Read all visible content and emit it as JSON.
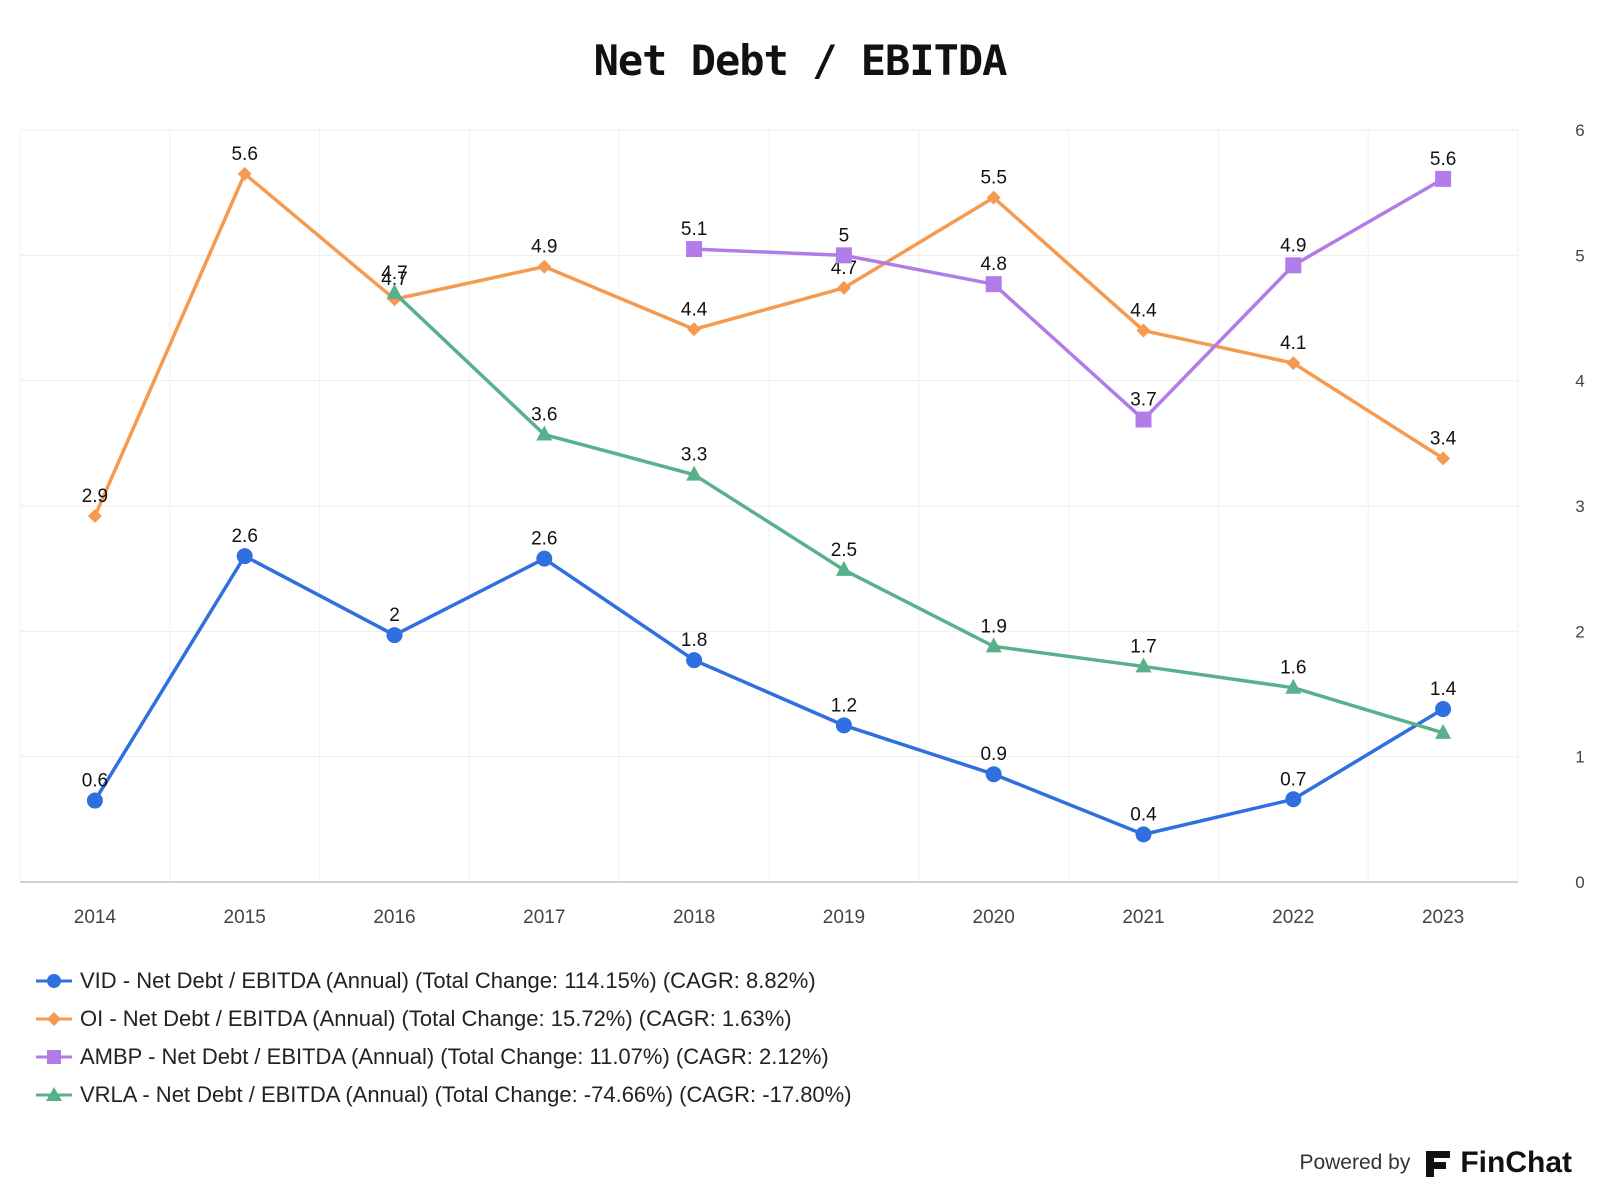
{
  "chart_data": {
    "type": "line",
    "title": "Net Debt / EBITDA",
    "categories": [
      "2014",
      "2015",
      "2016",
      "2017",
      "2018",
      "2019",
      "2020",
      "2021",
      "2022",
      "2023"
    ],
    "ylim": [
      0,
      6
    ],
    "yticks": [
      "0",
      "1",
      "2",
      "3",
      "4",
      "5",
      "6"
    ],
    "y_axis_side": "right",
    "grid": true,
    "series": [
      {
        "name": "VID - Net Debt / EBITDA (Annual) (Total Change: 114.15%) (CAGR: 8.82%)",
        "color": "#2F6FE0",
        "marker": "circle",
        "values": [
          0.65,
          2.6,
          1.97,
          2.58,
          1.77,
          1.25,
          0.86,
          0.38,
          0.66,
          1.38
        ],
        "labels": [
          "0.6",
          "2.6",
          "2",
          "2.6",
          "1.8",
          "1.2",
          "0.9",
          "0.4",
          "0.7",
          "1.4"
        ]
      },
      {
        "name": "OI - Net Debt / EBITDA (Annual) (Total Change: 15.72%) (CAGR: 1.63%)",
        "color": "#F59A4F",
        "marker": "diamond",
        "values": [
          2.92,
          5.65,
          4.65,
          4.91,
          4.41,
          4.74,
          5.46,
          4.4,
          4.14,
          3.38
        ],
        "labels": [
          "2.9",
          "5.6",
          "4.7",
          "4.9",
          "4.4",
          "4.7",
          "5.5",
          "4.4",
          "4.1",
          "3.4"
        ]
      },
      {
        "name": "AMBP - Net Debt / EBITDA (Annual) (Total Change: 11.07%) (CAGR: 2.12%)",
        "color": "#B07CE8",
        "marker": "square",
        "values": [
          null,
          null,
          null,
          null,
          5.05,
          5.0,
          4.77,
          3.69,
          4.92,
          5.61
        ],
        "labels": [
          null,
          null,
          null,
          null,
          "5.1",
          "5",
          "4.8",
          "3.7",
          "4.9",
          "5.6"
        ]
      },
      {
        "name": "VRLA - Net Debt / EBITDA (Annual) (Total Change: -74.66%) (CAGR: -17.80%)",
        "color": "#58B08C",
        "marker": "triangle",
        "values": [
          null,
          null,
          4.7,
          3.57,
          3.25,
          2.49,
          1.88,
          1.72,
          1.55,
          1.19
        ],
        "labels": [
          null,
          null,
          "4.7",
          "3.6",
          "3.3",
          "2.5",
          "1.9",
          "1.7",
          "1.6",
          null
        ]
      }
    ]
  },
  "footer": {
    "powered_by": "Powered by",
    "brand": "FinChat",
    "logo_icon": "finchat-logo-icon"
  }
}
